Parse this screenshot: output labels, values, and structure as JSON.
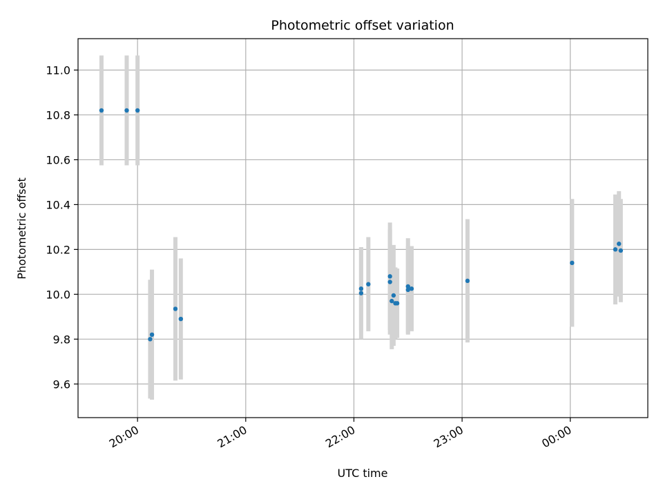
{
  "chart_data": {
    "type": "scatter",
    "title": "Photometric offset variation",
    "xlabel": "UTC time",
    "ylabel": "Photometric offset",
    "x_axis_kind": "time",
    "x_tick_labels": [
      "20:00",
      "21:00",
      "22:00",
      "23:00",
      "00:00"
    ],
    "x_tick_times": [
      "2000-01-01 20:00",
      "2000-01-01 21:00",
      "2000-01-01 22:00",
      "2000-01-01 23:00",
      "2000-01-02 00:00"
    ],
    "xlim": [
      "2000-01-01 19:27",
      "2000-01-02 00:43"
    ],
    "ylim": [
      9.45,
      11.14
    ],
    "y_ticks": [
      9.6,
      9.8,
      10.0,
      10.2,
      10.4,
      10.6,
      10.8,
      11.0
    ],
    "y_tick_labels": [
      "9.6",
      "9.8",
      "10.0",
      "10.2",
      "10.4",
      "10.6",
      "10.8",
      "11.0"
    ],
    "grid": true,
    "colors": {
      "points": "#1f77b4",
      "errorbars": "#d3d3d3",
      "grid": "#b0b0b0",
      "axes": "#000000"
    },
    "series": [
      {
        "points": [
          {
            "x": "2000-01-01 19:40",
            "y": 10.82,
            "err": 0.245
          },
          {
            "x": "2000-01-01 19:54",
            "y": 10.82,
            "err": 0.245
          },
          {
            "x": "2000-01-01 20:00",
            "y": 10.82,
            "err": 0.245
          },
          {
            "x": "2000-01-01 20:07",
            "y": 9.8,
            "err": 0.265
          },
          {
            "x": "2000-01-01 20:08",
            "y": 9.82,
            "err": 0.29
          },
          {
            "x": "2000-01-01 20:21",
            "y": 9.935,
            "err": 0.32
          },
          {
            "x": "2000-01-01 20:24",
            "y": 9.89,
            "err": 0.27
          },
          {
            "x": "2000-01-01 22:04",
            "y": 10.005,
            "err": 0.205
          },
          {
            "x": "2000-01-01 22:04",
            "y": 10.025,
            "err": 0.185
          },
          {
            "x": "2000-01-01 22:08",
            "y": 10.045,
            "err": 0.21
          },
          {
            "x": "2000-01-01 22:20",
            "y": 10.08,
            "err": 0.24
          },
          {
            "x": "2000-01-01 22:20",
            "y": 10.055,
            "err": 0.235
          },
          {
            "x": "2000-01-01 22:21",
            "y": 9.97,
            "err": 0.215
          },
          {
            "x": "2000-01-01 22:22",
            "y": 9.995,
            "err": 0.225
          },
          {
            "x": "2000-01-01 22:23",
            "y": 9.96,
            "err": 0.16
          },
          {
            "x": "2000-01-01 22:24",
            "y": 9.96,
            "err": 0.155
          },
          {
            "x": "2000-01-01 22:30",
            "y": 10.035,
            "err": 0.215
          },
          {
            "x": "2000-01-01 22:30",
            "y": 10.02,
            "err": 0.195
          },
          {
            "x": "2000-01-01 22:32",
            "y": 10.025,
            "err": 0.19
          },
          {
            "x": "2000-01-01 23:03",
            "y": 10.06,
            "err": 0.275
          },
          {
            "x": "2000-01-02 00:01",
            "y": 10.14,
            "err": 0.285
          },
          {
            "x": "2000-01-02 00:25",
            "y": 10.2,
            "err": 0.245
          },
          {
            "x": "2000-01-02 00:27",
            "y": 10.225,
            "err": 0.235
          },
          {
            "x": "2000-01-02 00:28",
            "y": 10.195,
            "err": 0.23
          }
        ]
      }
    ]
  }
}
